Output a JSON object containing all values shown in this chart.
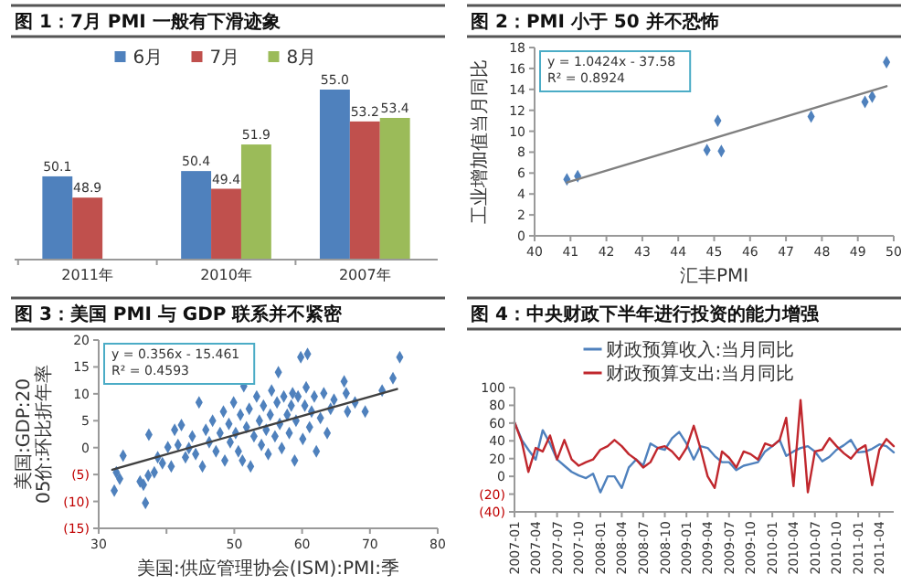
{
  "chart_data": [
    {
      "type": "bar",
      "title": "图 1：7月 PMI 一般有下滑迹象",
      "categories": [
        "2011年",
        "2010年",
        "2007年"
      ],
      "ylim": [
        45.4,
        55
      ],
      "tick_labels": "x",
      "legend": "top",
      "series": [
        {
          "name": "6月",
          "color": "#4f81bd",
          "values": [
            50.1,
            50.4,
            55.0
          ],
          "value_labels": [
            "50.1",
            "50.4",
            "55.0"
          ]
        },
        {
          "name": "7月",
          "color": "#c0504d",
          "values": [
            48.9,
            49.4,
            53.2
          ],
          "value_labels": [
            "48.9",
            "49.4",
            "53.2"
          ]
        },
        {
          "name": "8月",
          "color": "#9bbb59",
          "values": [
            null,
            51.9,
            53.4
          ],
          "value_labels": [
            null,
            "51.9",
            "53.4"
          ]
        }
      ]
    },
    {
      "type": "scatter",
      "title": "图 2：PMI 小于 50 并不恐怖",
      "xlabel": "汇丰PMI",
      "ylabel": "工业增加值当月同比",
      "xlim": [
        40,
        50
      ],
      "xticks": [
        40,
        41,
        42,
        43,
        44,
        45,
        46,
        47,
        48,
        49,
        50
      ],
      "ylim": [
        0,
        18
      ],
      "yticks": [
        0,
        2,
        4,
        6,
        8,
        10,
        12,
        14,
        16,
        18
      ],
      "marker": "diamond",
      "annotations": [
        "y = 1.0424x - 37.58",
        "R² = 0.8924"
      ],
      "series": [
        {
          "color": "#4f81bd",
          "x": [
            40.9,
            41.2,
            44.8,
            45.1,
            45.2,
            47.7,
            49.2,
            49.4,
            49.8
          ],
          "values": [
            5.4,
            5.7,
            8.2,
            11.0,
            8.1,
            11.4,
            12.8,
            13.3,
            16.6
          ]
        },
        {
          "type": "line",
          "marker": "none",
          "color": "#808080",
          "x": [
            40.9,
            49.8
          ],
          "values": [
            5.1,
            14.3
          ]
        }
      ]
    },
    {
      "type": "scatter",
      "title": "图 3：美国 PMI 与 GDP 联系并不紧密",
      "xlabel": "美国:供应管理协会(ISM):PMI:季",
      "ylabel": "美国:GDP:2005价:环比折年率",
      "xlim": [
        30,
        80
      ],
      "xticks": [
        30,
        {
          "value": 40,
          "label": null
        },
        50,
        60,
        70,
        80
      ],
      "ylim": [
        -15,
        20
      ],
      "yticks": [
        {
          "value": -15,
          "label": "(15)"
        },
        {
          "value": -10,
          "label": "(10)"
        },
        {
          "value": -5,
          "label": "(5)"
        },
        0,
        5,
        10,
        15,
        20
      ],
      "marker": "diamond",
      "annotations": [
        "y = 0.356x - 15.461",
        "R² = 0.4593"
      ],
      "series": [
        {
          "color": "#4f81bd",
          "x": [
            32.3,
            32.6,
            33.1,
            33.6,
            36.1,
            36.6,
            36.9,
            37.3,
            37.4,
            38.2,
            38.7,
            39.4,
            40.2,
            40.7,
            41.2,
            41.7,
            42.2,
            42.8,
            43.3,
            43.8,
            44.3,
            44.8,
            45.3,
            45.8,
            46.3,
            46.8,
            47.3,
            47.9,
            48.4,
            48.6,
            49.2,
            49.4,
            49.9,
            50.2,
            50.6,
            50.9,
            51.2,
            51.4,
            51.8,
            52.2,
            52.4,
            52.9,
            53.3,
            53.7,
            54.0,
            54.3,
            54.7,
            55.0,
            55.3,
            55.5,
            56.0,
            56.3,
            56.5,
            56.7,
            57.0,
            57.3,
            57.8,
            58.1,
            58.4,
            58.6,
            58.9,
            59.1,
            59.4,
            59.8,
            60.1,
            60.4,
            60.6,
            60.8,
            61.1,
            61.4,
            61.8,
            62.1,
            62.7,
            63.2,
            63.7,
            64.2,
            64.7,
            66.2,
            66.5,
            66.7,
            67.8,
            69.3,
            71.8,
            73.4,
            74.4
          ],
          "values": [
            -8.0,
            -4.6,
            -5.8,
            -1.5,
            -6.3,
            -6.9,
            -10.3,
            -5.2,
            2.4,
            -4.6,
            -1.8,
            -2.9,
            0.1,
            -3.5,
            3.3,
            0.5,
            4.2,
            -1.8,
            -0.1,
            2.1,
            -1.2,
            8.4,
            -3.5,
            3.3,
            1.0,
            5.0,
            -0.7,
            2.7,
            6.7,
            -2.4,
            4.4,
            1.0,
            8.4,
            2.7,
            -0.7,
            6.1,
            -2.4,
            11.4,
            3.8,
            7.2,
            -3.5,
            2.1,
            9.5,
            5.0,
            0.5,
            7.8,
            3.3,
            -1.2,
            6.1,
            10.6,
            2.1,
            8.4,
            14.0,
            4.4,
            -0.1,
            9.5,
            6.1,
            2.7,
            7.8,
            10.1,
            -2.4,
            5.0,
            9.5,
            16.8,
            1.6,
            7.8,
            11.2,
            17.4,
            3.8,
            6.7,
            9.5,
            -0.7,
            5.5,
            10.1,
            2.7,
            7.2,
            8.9,
            12.3,
            10.1,
            6.7,
            8.4,
            6.7,
            10.6,
            12.9,
            16.8
          ]
        },
        {
          "type": "line",
          "marker": "none",
          "color": "#404040",
          "x": [
            32,
            74
          ],
          "values": [
            -4.1,
            10.9
          ]
        }
      ]
    },
    {
      "type": "line",
      "title": "图 4：中央财政下半年进行投资的能力增强",
      "legend": "top",
      "xlim": [
        "2007-01",
        "2011-06"
      ],
      "xticks": [
        "2007-01",
        "2007-04",
        "2007-07",
        "2007-10",
        "2008-01",
        "2008-04",
        "2008-07",
        "2008-10",
        "2009-01",
        "2009-04",
        "2009-07",
        "2009-10",
        "2010-01",
        "2010-04",
        "2010-07",
        "2010-10",
        "2011-01",
        "2011-04"
      ],
      "ylim": [
        -40,
        100
      ],
      "yticks": [
        {
          "value": -40,
          "label": "(40)"
        },
        {
          "value": -20,
          "label": "(20)"
        },
        0,
        20,
        40,
        60,
        80,
        100
      ],
      "x": [
        "2007-01",
        "2007-02",
        "2007-03",
        "2007-04",
        "2007-05",
        "2007-06",
        "2007-07",
        "2007-08",
        "2007-09",
        "2007-10",
        "2007-11",
        "2007-12",
        "2008-01",
        "2008-02",
        "2008-03",
        "2008-04",
        "2008-05",
        "2008-06",
        "2008-07",
        "2008-08",
        "2008-09",
        "2008-10",
        "2008-11",
        "2008-12",
        "2009-01",
        "2009-02",
        "2009-03",
        "2009-04",
        "2009-05",
        "2009-06",
        "2009-07",
        "2009-08",
        "2009-09",
        "2009-10",
        "2009-11",
        "2009-12",
        "2010-01",
        "2010-02",
        "2010-03",
        "2010-04",
        "2010-05",
        "2010-06",
        "2010-07",
        "2010-08",
        "2010-09",
        "2010-10",
        "2010-11",
        "2010-12",
        "2011-01",
        "2011-02",
        "2011-03",
        "2011-04",
        "2011-05",
        "2011-06"
      ],
      "series": [
        {
          "name": "财政预算收入:当月同比",
          "color": "#4f81bd",
          "values": [
            61,
            41,
            30,
            19,
            52,
            37,
            19,
            12,
            5,
            1,
            -2,
            3,
            -18,
            0,
            0,
            -13,
            10,
            19,
            12,
            37,
            32,
            30,
            43,
            50,
            37,
            19,
            34,
            32,
            23,
            16,
            16,
            7,
            12,
            14,
            16,
            28,
            34,
            41,
            23,
            28,
            32,
            34,
            28,
            17,
            22,
            30,
            35,
            41,
            27,
            28,
            31,
            36,
            34,
            27
          ]
        },
        {
          "name": "财政预算支出:当月同比",
          "color": "#c0272d",
          "values": [
            61,
            39,
            5,
            32,
            28,
            46,
            19,
            41,
            19,
            12,
            16,
            19,
            30,
            34,
            41,
            34,
            25,
            19,
            10,
            16,
            32,
            34,
            28,
            19,
            32,
            57,
            32,
            0,
            -13,
            28,
            21,
            10,
            28,
            25,
            19,
            37,
            34,
            41,
            66,
            -11,
            86,
            -18,
            28,
            30,
            43,
            34,
            26,
            20,
            30,
            35,
            -10,
            30,
            42,
            34
          ]
        }
      ]
    }
  ]
}
